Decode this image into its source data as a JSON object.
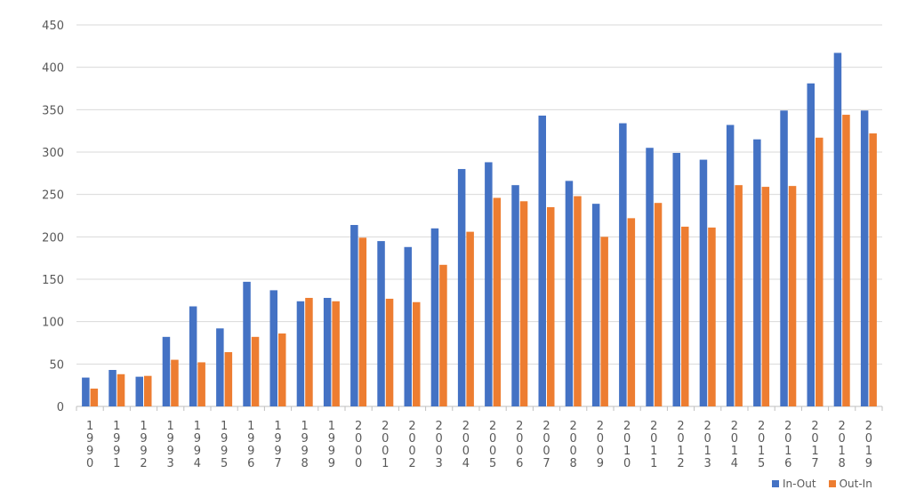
{
  "chart_data": {
    "type": "bar",
    "title": "",
    "xlabel": "",
    "ylabel": "",
    "ylim": [
      0,
      450
    ],
    "yticks": [
      0,
      50,
      100,
      150,
      200,
      250,
      300,
      350,
      400,
      450
    ],
    "grid": true,
    "legend_position": "bottom-right",
    "categories": [
      "1990",
      "1991",
      "1992",
      "1993",
      "1994",
      "1995",
      "1996",
      "1997",
      "1998",
      "1999",
      "2000",
      "2001",
      "2002",
      "2003",
      "2004",
      "2005",
      "2006",
      "2007",
      "2008",
      "2009",
      "2010",
      "2011",
      "2012",
      "2013",
      "2014",
      "2015",
      "2016",
      "2017",
      "2018",
      "2019"
    ],
    "series": [
      {
        "name": "In-Out",
        "color": "#4472C4",
        "values": [
          34,
          43,
          35,
          82,
          118,
          92,
          147,
          137,
          124,
          128,
          214,
          195,
          188,
          210,
          280,
          288,
          261,
          343,
          266,
          239,
          334,
          305,
          299,
          291,
          332,
          315,
          349,
          381,
          417,
          349
        ]
      },
      {
        "name": "Out-In",
        "color": "#ED7D31",
        "values": [
          21,
          38,
          36,
          55,
          52,
          64,
          82,
          86,
          128,
          124,
          199,
          127,
          123,
          167,
          206,
          246,
          242,
          235,
          248,
          200,
          222,
          240,
          212,
          211,
          261,
          259,
          260,
          317,
          344,
          322
        ]
      }
    ]
  }
}
